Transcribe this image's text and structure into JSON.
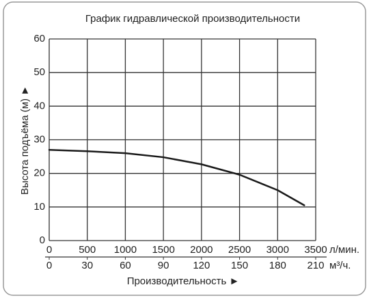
{
  "chart_data": {
    "type": "line",
    "title": "График гидравлической производительности",
    "x_label": "Производительность ►",
    "y_label": "Высота подъёма (м) ►",
    "x_unit": "л/мин.",
    "x2_unit": "м³/ч.",
    "xlim": [
      0,
      3500
    ],
    "xticks": [
      0,
      500,
      1000,
      1500,
      2000,
      2500,
      3000,
      3500
    ],
    "x2lim": [
      0,
      210
    ],
    "x2ticks": [
      0,
      30,
      60,
      90,
      120,
      150,
      180,
      210
    ],
    "ylim": [
      0,
      60
    ],
    "yticks": [
      0,
      10,
      20,
      30,
      40,
      50,
      60
    ],
    "grid": true,
    "series": [
      {
        "color": "#1a1a1a",
        "x": [
          0,
          500,
          1000,
          1500,
          2000,
          2500,
          3000,
          3350
        ],
        "values": [
          27,
          26.6,
          26,
          24.8,
          22.7,
          19.6,
          15,
          10.5
        ]
      }
    ]
  }
}
